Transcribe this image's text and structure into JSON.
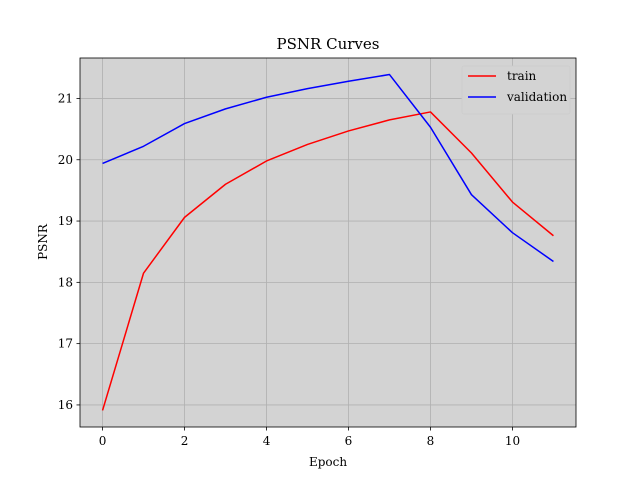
{
  "chart_data": {
    "type": "line",
    "title": "PSNR Curves",
    "xlabel": "Epoch",
    "ylabel": "PSNR",
    "xlim": [
      -0.55,
      11.55
    ],
    "ylim": [
      15.64,
      21.66
    ],
    "x_ticks": [
      0,
      2,
      4,
      6,
      8,
      10
    ],
    "y_ticks": [
      16,
      17,
      18,
      19,
      20,
      21
    ],
    "grid": true,
    "legend_position": "top-right",
    "background_color": "#d3d3d3",
    "grid_color": "#b0b0b0",
    "x": [
      0,
      1,
      2,
      3,
      4,
      5,
      6,
      7,
      8,
      9,
      10,
      11
    ],
    "series": [
      {
        "name": "train",
        "color": "#ff0000",
        "values": [
          15.91,
          18.15,
          19.06,
          19.6,
          19.98,
          20.25,
          20.47,
          20.65,
          20.78,
          20.11,
          19.31,
          18.76
        ]
      },
      {
        "name": "validation",
        "color": "#0000ff",
        "values": [
          19.94,
          20.22,
          20.59,
          20.83,
          21.02,
          21.16,
          21.28,
          21.39,
          20.53,
          19.43,
          18.81,
          18.34
        ]
      }
    ]
  }
}
